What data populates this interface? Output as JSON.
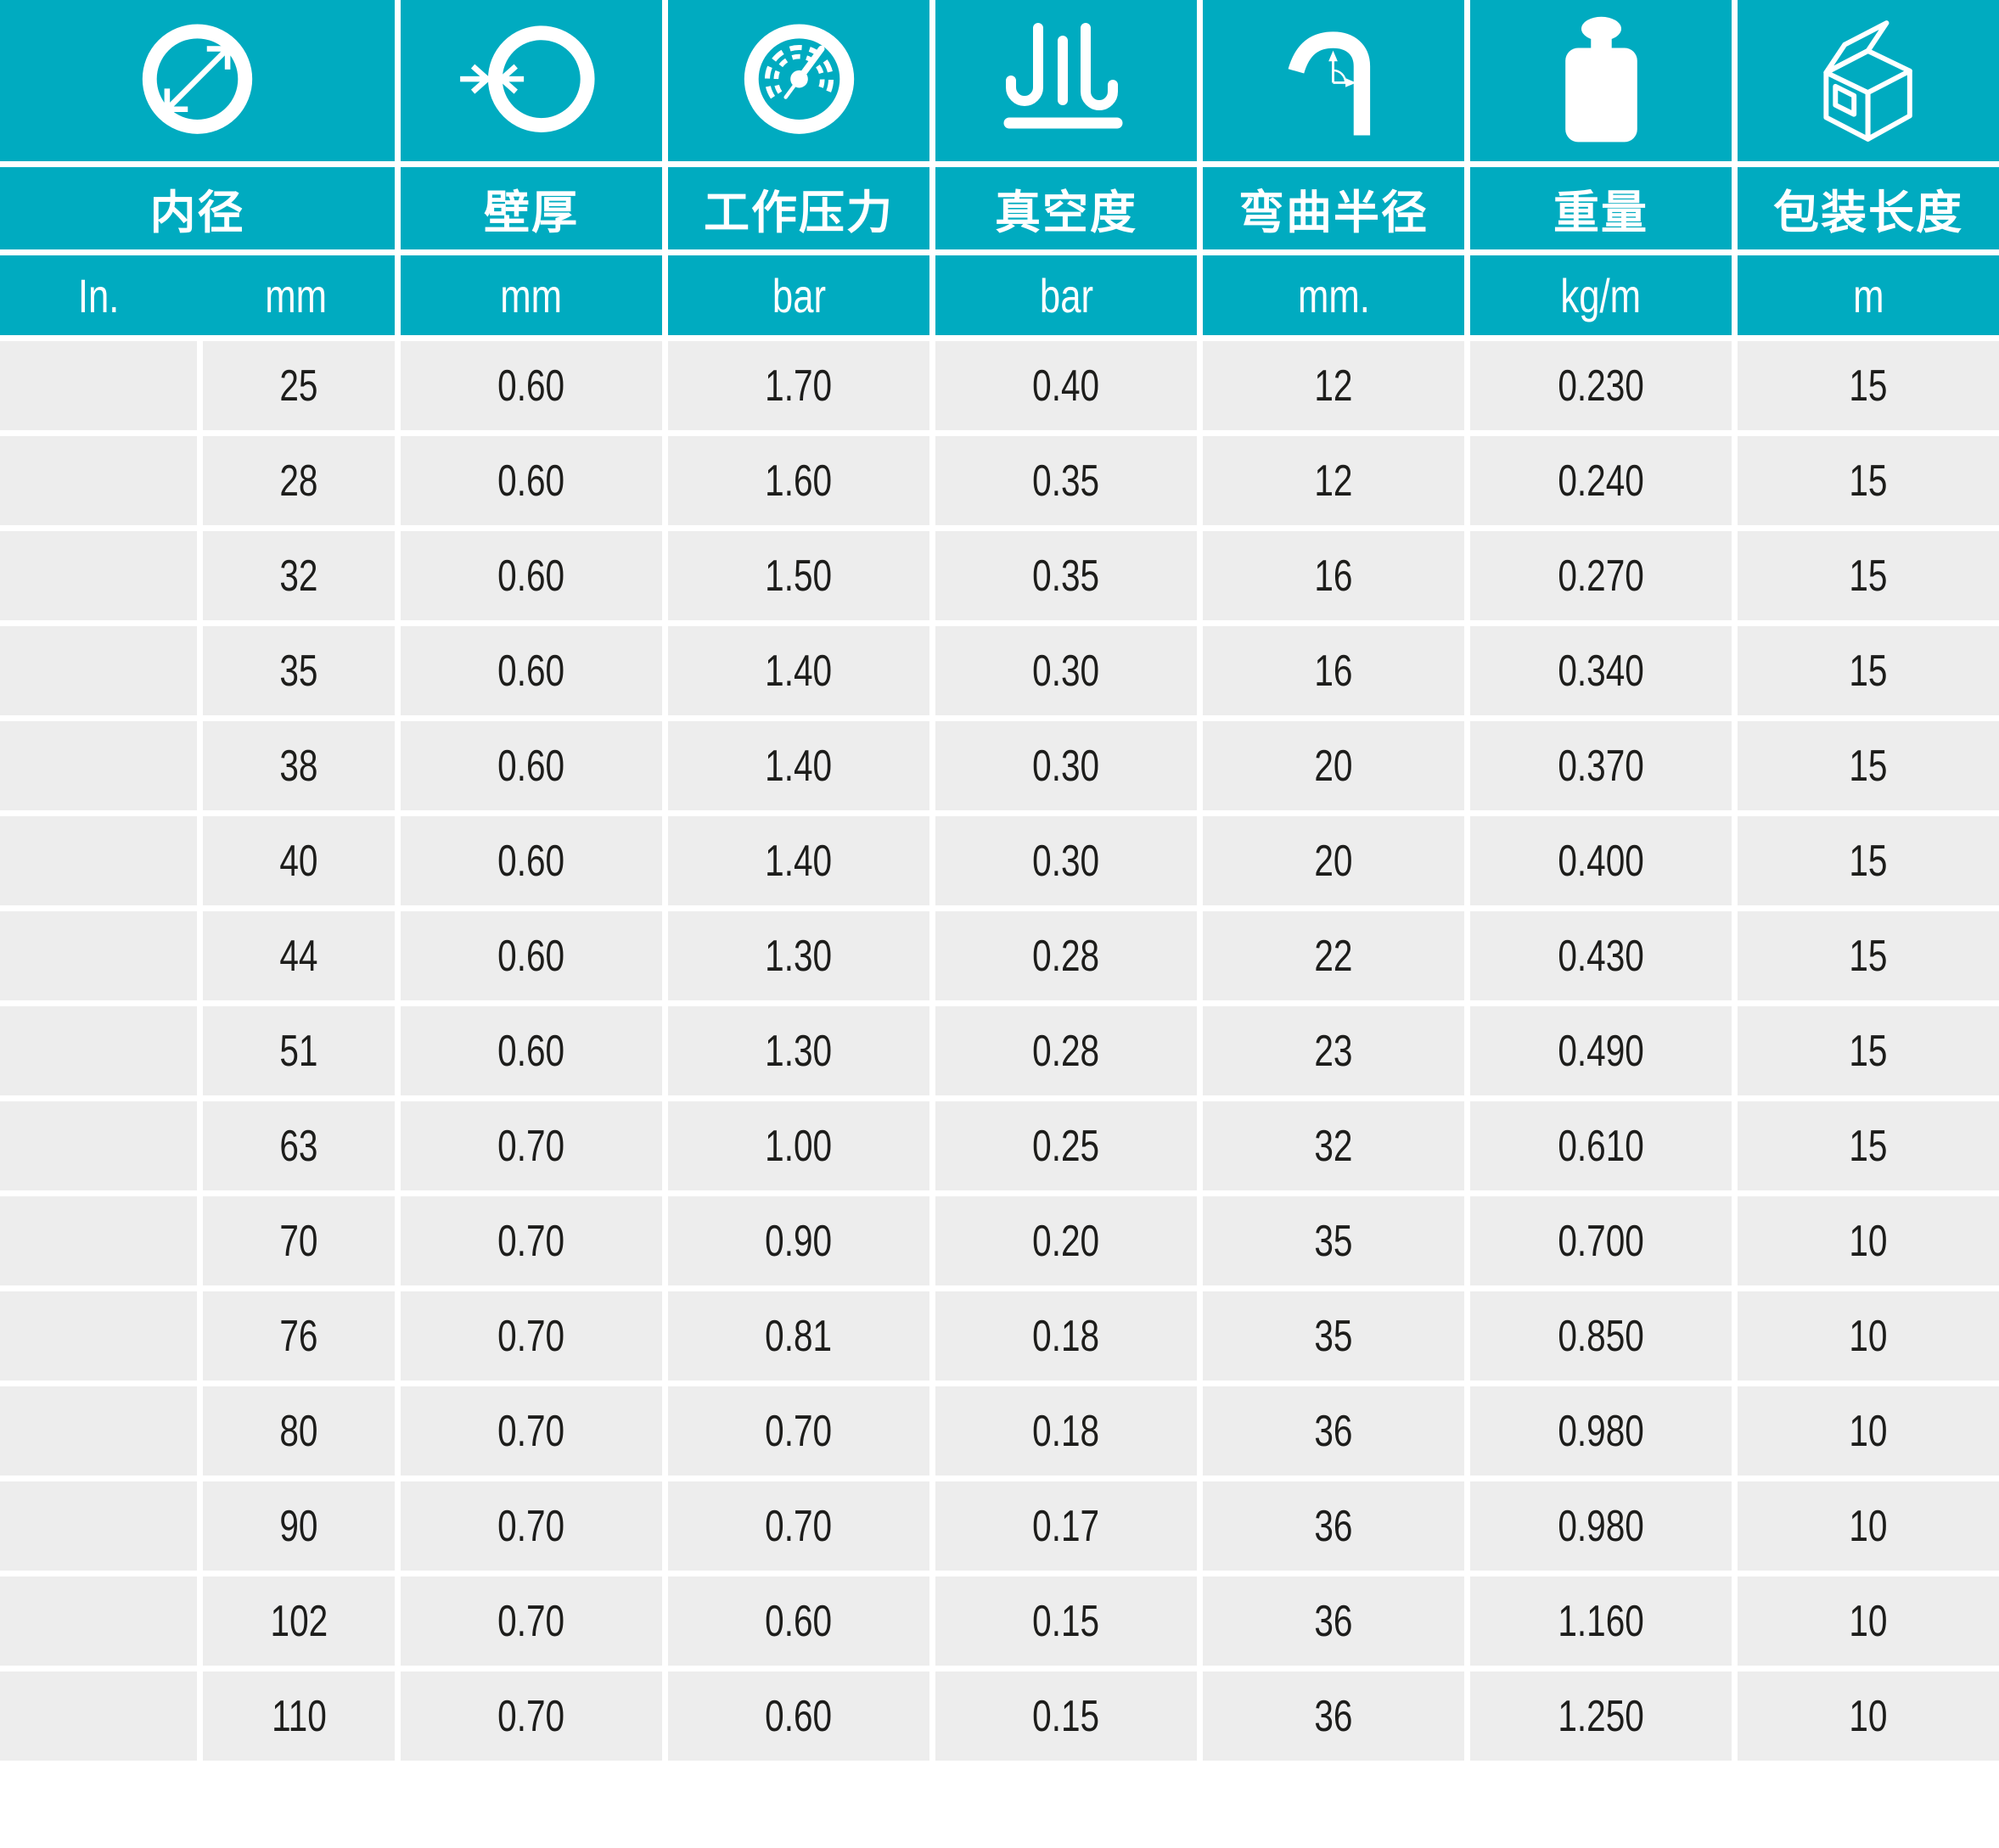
{
  "table": {
    "columns": [
      {
        "icon": "inner-diameter-icon",
        "label": "内径",
        "units": [
          "In.",
          "mm"
        ]
      },
      {
        "icon": "wall-thickness-icon",
        "label": "壁厚",
        "unit": "mm"
      },
      {
        "icon": "working-pressure-icon",
        "label": "工作压力",
        "unit": "bar"
      },
      {
        "icon": "vacuum-icon",
        "label": "真空度",
        "unit": "bar"
      },
      {
        "icon": "bend-radius-icon",
        "label": "弯曲半径",
        "unit": "mm."
      },
      {
        "icon": "weight-icon",
        "label": "重量",
        "unit": "kg/m"
      },
      {
        "icon": "packing-length-icon",
        "label": "包装长度",
        "unit": "m"
      }
    ],
    "rows": [
      [
        "",
        "25",
        "0.60",
        "1.70",
        "0.40",
        "12",
        "0.230",
        "15"
      ],
      [
        "",
        "28",
        "0.60",
        "1.60",
        "0.35",
        "12",
        "0.240",
        "15"
      ],
      [
        "",
        "32",
        "0.60",
        "1.50",
        "0.35",
        "16",
        "0.270",
        "15"
      ],
      [
        "",
        "35",
        "0.60",
        "1.40",
        "0.30",
        "16",
        "0.340",
        "15"
      ],
      [
        "",
        "38",
        "0.60",
        "1.40",
        "0.30",
        "20",
        "0.370",
        "15"
      ],
      [
        "",
        "40",
        "0.60",
        "1.40",
        "0.30",
        "20",
        "0.400",
        "15"
      ],
      [
        "",
        "44",
        "0.60",
        "1.30",
        "0.28",
        "22",
        "0.430",
        "15"
      ],
      [
        "",
        "51",
        "0.60",
        "1.30",
        "0.28",
        "23",
        "0.490",
        "15"
      ],
      [
        "",
        "63",
        "0.70",
        "1.00",
        "0.25",
        "32",
        "0.610",
        "15"
      ],
      [
        "",
        "70",
        "0.70",
        "0.90",
        "0.20",
        "35",
        "0.700",
        "10"
      ],
      [
        "",
        "76",
        "0.70",
        "0.81",
        "0.18",
        "35",
        "0.850",
        "10"
      ],
      [
        "",
        "80",
        "0.70",
        "0.70",
        "0.18",
        "36",
        "0.980",
        "10"
      ],
      [
        "",
        "90",
        "0.70",
        "0.70",
        "0.17",
        "36",
        "0.980",
        "10"
      ],
      [
        "",
        "102",
        "0.70",
        "0.60",
        "0.15",
        "36",
        "1.160",
        "10"
      ],
      [
        "",
        "110",
        "0.70",
        "0.60",
        "0.15",
        "36",
        "1.250",
        "10"
      ]
    ]
  },
  "colors": {
    "teal": "#00ABC0",
    "row_bg": "#EDEDED",
    "text": "#1D1D1B",
    "header_text": "#FFFFFF"
  }
}
